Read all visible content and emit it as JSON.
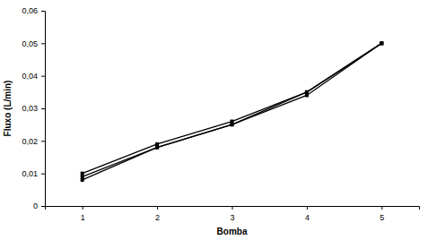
{
  "chart_data": {
    "type": "line",
    "x_label": "Bomba",
    "y_label": "Fluxo (L/min)",
    "categories": [
      "1",
      "2",
      "3",
      "4",
      "5"
    ],
    "series": [
      {
        "color": "#000000",
        "marker": "square",
        "line_style": "solid",
        "values": [
          0.01,
          0.019,
          0.026,
          0.035,
          0.05
        ]
      },
      {
        "color": "#000000",
        "marker": "square",
        "line_style": "solid",
        "values": [
          0.009,
          0.018,
          0.025,
          0.034,
          0.05
        ]
      },
      {
        "color": "#000000",
        "marker": "square",
        "line_style": "solid",
        "values": [
          0.008,
          0.018,
          0.025,
          0.035,
          0.05
        ]
      }
    ],
    "ylim": [
      0,
      0.06
    ],
    "yticks": [
      0,
      {
        "value": 0.01,
        "label": "0,01"
      },
      {
        "value": 0.02,
        "label": "0,02"
      },
      {
        "value": 0.03,
        "label": "0,03"
      },
      {
        "value": 0.04,
        "label": "0,04"
      },
      {
        "value": 0.05,
        "label": "0,05"
      },
      {
        "value": 0.06,
        "label": "0,06"
      }
    ],
    "grid": false
  }
}
